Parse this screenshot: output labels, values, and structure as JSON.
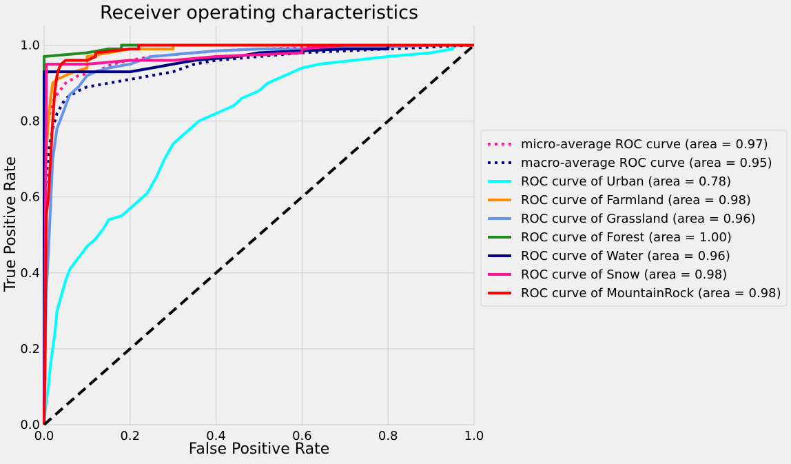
{
  "chart_data": {
    "type": "line",
    "title": "Receiver operating characteristics",
    "xlabel": "False Positive Rate",
    "ylabel": "True Positive Rate",
    "xlim": [
      0.0,
      1.0
    ],
    "ylim": [
      0.0,
      1.05
    ],
    "xticks": [
      "0.0",
      "0.2",
      "0.4",
      "0.6",
      "0.8",
      "1.0"
    ],
    "yticks": [
      "0.0",
      "0.2",
      "0.4",
      "0.6",
      "0.8",
      "1.0"
    ],
    "grid": true,
    "legend_position": "center-right, outside plot",
    "series": [
      {
        "name": "micro-average ROC curve (area = 0.97)",
        "color": "#ff1493",
        "dash": "dotted",
        "x": [
          0,
          0.002,
          0.005,
          0.01,
          0.015,
          0.02,
          0.03,
          0.05,
          0.08,
          0.12,
          0.16,
          0.2,
          0.25,
          0.3,
          0.35,
          0.4,
          0.5,
          0.6,
          0.7,
          0.8,
          0.9,
          1.0
        ],
        "y": [
          0,
          0.63,
          0.72,
          0.8,
          0.83,
          0.85,
          0.87,
          0.9,
          0.92,
          0.93,
          0.95,
          0.96,
          0.97,
          0.975,
          0.98,
          0.985,
          0.99,
          0.993,
          0.996,
          0.998,
          0.999,
          1.0
        ]
      },
      {
        "name": "macro-average ROC curve (area = 0.95)",
        "color": "#000080",
        "dash": "dotted",
        "x": [
          0,
          0.002,
          0.01,
          0.02,
          0.03,
          0.05,
          0.08,
          0.1,
          0.15,
          0.2,
          0.25,
          0.3,
          0.35,
          0.4,
          0.5,
          0.6,
          0.7,
          0.8,
          0.9,
          0.95,
          1.0
        ],
        "y": [
          0,
          0.6,
          0.72,
          0.78,
          0.82,
          0.86,
          0.88,
          0.89,
          0.9,
          0.91,
          0.92,
          0.93,
          0.95,
          0.96,
          0.97,
          0.98,
          0.985,
          0.99,
          0.995,
          0.998,
          1.0
        ]
      },
      {
        "name": "ROC curve of Urban (area = 0.78)",
        "color": "#00ffff",
        "dash": "solid",
        "x": [
          0,
          0.002,
          0.005,
          0.01,
          0.015,
          0.02,
          0.025,
          0.03,
          0.04,
          0.05,
          0.06,
          0.08,
          0.1,
          0.12,
          0.14,
          0.15,
          0.18,
          0.2,
          0.22,
          0.24,
          0.26,
          0.28,
          0.3,
          0.32,
          0.34,
          0.36,
          0.38,
          0.4,
          0.42,
          0.44,
          0.46,
          0.48,
          0.5,
          0.52,
          0.54,
          0.56,
          0.58,
          0.6,
          0.64,
          0.68,
          0.72,
          0.76,
          0.8,
          0.85,
          0.9,
          0.95,
          0.95,
          1.0
        ],
        "y": [
          0,
          0.03,
          0.06,
          0.1,
          0.16,
          0.2,
          0.24,
          0.3,
          0.34,
          0.38,
          0.41,
          0.44,
          0.47,
          0.49,
          0.52,
          0.54,
          0.55,
          0.57,
          0.59,
          0.61,
          0.65,
          0.7,
          0.74,
          0.76,
          0.78,
          0.8,
          0.81,
          0.82,
          0.83,
          0.84,
          0.86,
          0.87,
          0.88,
          0.9,
          0.91,
          0.92,
          0.93,
          0.94,
          0.95,
          0.955,
          0.96,
          0.965,
          0.97,
          0.975,
          0.98,
          0.99,
          1.0,
          1.0
        ]
      },
      {
        "name": "ROC curve of Farmland (area = 0.98)",
        "color": "#ff8c00",
        "dash": "solid",
        "x": [
          0,
          0.002,
          0.005,
          0.01,
          0.015,
          0.02,
          0.03,
          0.05,
          0.07,
          0.1,
          0.1,
          0.15,
          0.2,
          0.3,
          0.3,
          1.0
        ],
        "y": [
          0,
          0.6,
          0.72,
          0.8,
          0.86,
          0.9,
          0.91,
          0.92,
          0.93,
          0.94,
          0.97,
          0.98,
          0.99,
          0.99,
          1.0,
          1.0
        ]
      },
      {
        "name": "ROC curve of Grassland (area = 0.96)",
        "color": "#6495ed",
        "dash": "solid",
        "x": [
          0,
          0.002,
          0.005,
          0.01,
          0.015,
          0.02,
          0.03,
          0.04,
          0.05,
          0.06,
          0.08,
          0.1,
          0.12,
          0.15,
          0.2,
          0.25,
          0.3,
          0.35,
          0.4,
          0.5,
          0.6,
          0.7,
          0.8,
          0.9,
          1.0
        ],
        "y": [
          0,
          0.13,
          0.35,
          0.45,
          0.58,
          0.7,
          0.78,
          0.81,
          0.84,
          0.87,
          0.89,
          0.92,
          0.93,
          0.94,
          0.95,
          0.97,
          0.975,
          0.98,
          0.985,
          0.99,
          0.99,
          0.995,
          0.995,
          1.0,
          1.0
        ]
      },
      {
        "name": "ROC curve of Forest (area = 1.00)",
        "color": "#228b22",
        "dash": "solid",
        "x": [
          0,
          0,
          0.05,
          0.1,
          0.15,
          0.18,
          0.18,
          1.0
        ],
        "y": [
          0,
          0.97,
          0.975,
          0.98,
          0.99,
          0.99,
          1.0,
          1.0
        ]
      },
      {
        "name": "ROC curve of Water (area = 0.96)",
        "color": "#000080",
        "dash": "solid",
        "x": [
          0,
          0,
          0.05,
          0.1,
          0.15,
          0.2,
          0.25,
          0.3,
          0.35,
          0.4,
          0.45,
          0.5,
          0.6,
          0.7,
          0.8,
          0.8,
          1.0
        ],
        "y": [
          0,
          0.93,
          0.93,
          0.93,
          0.93,
          0.93,
          0.94,
          0.95,
          0.96,
          0.965,
          0.97,
          0.98,
          0.985,
          0.99,
          0.99,
          1.0,
          1.0
        ]
      },
      {
        "name": "ROC curve of Snow (area = 0.98)",
        "color": "#ff1493",
        "dash": "solid",
        "x": [
          0,
          0.005,
          0.005,
          0.01,
          0.05,
          0.1,
          0.2,
          0.3,
          0.4,
          0.5,
          0.6,
          0.6,
          0.7,
          1.0
        ],
        "y": [
          0,
          0.86,
          0.95,
          0.95,
          0.95,
          0.95,
          0.96,
          0.96,
          0.97,
          0.975,
          0.98,
          0.99,
          1.0,
          1.0
        ]
      },
      {
        "name": "ROC curve of MountainRock (area = 0.98)",
        "color": "#ff0000",
        "dash": "solid",
        "x": [
          0,
          0.002,
          0.005,
          0.01,
          0.015,
          0.02,
          0.025,
          0.03,
          0.035,
          0.04,
          0.05,
          0.08,
          0.1,
          0.12,
          0.12,
          0.2,
          0.22,
          0.22,
          1.0
        ],
        "y": [
          0,
          0.13,
          0.55,
          0.6,
          0.7,
          0.8,
          0.88,
          0.92,
          0.94,
          0.95,
          0.96,
          0.96,
          0.96,
          0.97,
          0.98,
          0.99,
          0.99,
          1.0,
          1.0
        ]
      },
      {
        "name": "",
        "color": "#000000",
        "dash": "dashed",
        "x": [
          0,
          1
        ],
        "y": [
          0,
          1
        ]
      }
    ]
  }
}
